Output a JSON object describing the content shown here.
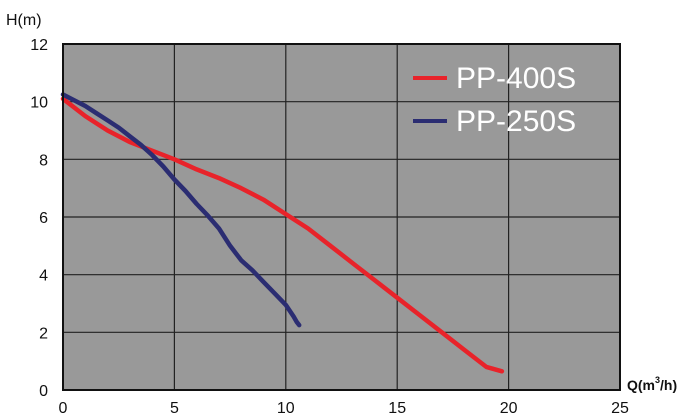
{
  "chart_data": {
    "type": "line",
    "ylabel": "H(m)",
    "xlabel_main": "Q(m",
    "xlabel_sup": "3",
    "xlabel_tail": "/h)",
    "xlim": [
      0,
      25
    ],
    "ylim": [
      0,
      12
    ],
    "x_ticks": [
      "0",
      "5",
      "10",
      "15",
      "20",
      "25"
    ],
    "y_ticks": [
      "0",
      "2",
      "4",
      "6",
      "8",
      "10",
      "12"
    ],
    "grid": true,
    "legend_position": "top-right",
    "colors": {
      "plot_background": "#999999",
      "grid": "#222222",
      "frame": "#111111"
    },
    "series": [
      {
        "name": "PP-400S",
        "color": "#e8232a",
        "points": [
          [
            0,
            10.1
          ],
          [
            1,
            9.5
          ],
          [
            2,
            9.0
          ],
          [
            3,
            8.6
          ],
          [
            4,
            8.3
          ],
          [
            5,
            8.0
          ],
          [
            6,
            7.65
          ],
          [
            7,
            7.35
          ],
          [
            8,
            7.0
          ],
          [
            9,
            6.6
          ],
          [
            10,
            6.1
          ],
          [
            11,
            5.6
          ],
          [
            12,
            5.0
          ],
          [
            13,
            4.4
          ],
          [
            14,
            3.8
          ],
          [
            15,
            3.2
          ],
          [
            16,
            2.6
          ],
          [
            17,
            2.0
          ],
          [
            18,
            1.4
          ],
          [
            19,
            0.8
          ],
          [
            19.7,
            0.65
          ]
        ]
      },
      {
        "name": "PP-250S",
        "color": "#2b2d72",
        "points": [
          [
            0,
            10.25
          ],
          [
            0.5,
            10.05
          ],
          [
            1,
            9.85
          ],
          [
            1.5,
            9.6
          ],
          [
            2,
            9.35
          ],
          [
            2.5,
            9.1
          ],
          [
            3,
            8.8
          ],
          [
            3.5,
            8.5
          ],
          [
            4,
            8.15
          ],
          [
            4.5,
            7.75
          ],
          [
            5,
            7.3
          ],
          [
            5.5,
            6.9
          ],
          [
            6,
            6.45
          ],
          [
            6.5,
            6.05
          ],
          [
            7,
            5.6
          ],
          [
            7.5,
            5.0
          ],
          [
            8,
            4.5
          ],
          [
            8.5,
            4.15
          ],
          [
            9,
            3.75
          ],
          [
            9.5,
            3.35
          ],
          [
            10,
            2.95
          ],
          [
            10.35,
            2.55
          ],
          [
            10.5,
            2.35
          ],
          [
            10.6,
            2.25
          ]
        ]
      }
    ]
  }
}
